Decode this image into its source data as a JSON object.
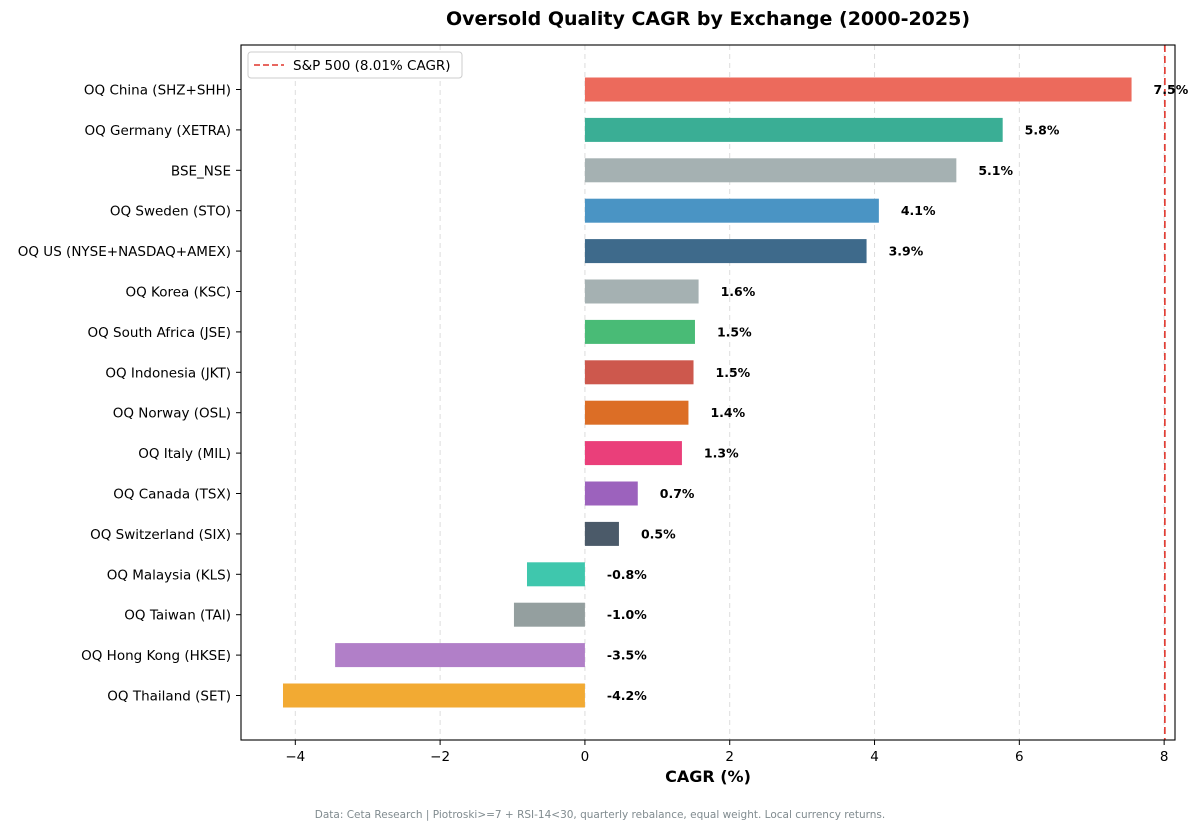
{
  "chart_data": {
    "type": "bar",
    "orientation": "horizontal",
    "title": "Oversold Quality CAGR by Exchange (2000-2025)",
    "xlabel": "CAGR (%)",
    "ylabel": "",
    "xlim": [
      -4.75,
      8.15
    ],
    "xticks": [
      -4,
      -2,
      0,
      2,
      4,
      6,
      8
    ],
    "xtick_labels": [
      "−4",
      "−2",
      "0",
      "2",
      "4",
      "6",
      "8"
    ],
    "grid": "vertical dashed",
    "categories": [
      "OQ China (SHZ+SHH)",
      "OQ Germany (XETRA)",
      "BSE_NSE",
      "OQ Sweden (STO)",
      "OQ US (NYSE+NASDAQ+AMEX)",
      "OQ Korea (KSC)",
      "OQ South Africa (JSE)",
      "OQ Indonesia (JKT)",
      "OQ Norway (OSL)",
      "OQ Italy (MIL)",
      "OQ Canada (TSX)",
      "OQ Switzerland (SIX)",
      "OQ Malaysia (KLS)",
      "OQ Taiwan (TAI)",
      "OQ Hong Kong (HKSE)",
      "OQ Thailand (SET)"
    ],
    "values": [
      7.55,
      5.77,
      5.13,
      4.06,
      3.89,
      1.57,
      1.52,
      1.5,
      1.43,
      1.34,
      0.73,
      0.47,
      -0.8,
      -0.98,
      -3.45,
      -4.17
    ],
    "value_labels": [
      "7.5%",
      "5.8%",
      "5.1%",
      "4.1%",
      "3.9%",
      "1.6%",
      "1.5%",
      "1.5%",
      "1.4%",
      "1.3%",
      "0.7%",
      "0.5%",
      "-0.8%",
      "-1.0%",
      "-3.5%",
      "-4.2%"
    ],
    "colors": [
      "#ec6a5c",
      "#3aae95",
      "#a5b1b2",
      "#4a94c4",
      "#3e6a8b",
      "#a5b1b2",
      "#49bb76",
      "#cd584d",
      "#dc6e26",
      "#ea3f7a",
      "#9c62bd",
      "#4b5a69",
      "#3fc7ad",
      "#949f9f",
      "#b17fc8",
      "#f2aa33"
    ],
    "reference_line": {
      "value": 8.01,
      "label": "S&P 500 (8.01% CAGR)",
      "color": "#e0352b",
      "style": "dashed"
    },
    "legend_placement": "top-left"
  },
  "footnote": "Data: Ceta Research | Piotroski>=7 + RSI-14<30, quarterly rebalance, equal weight. Local currency returns."
}
